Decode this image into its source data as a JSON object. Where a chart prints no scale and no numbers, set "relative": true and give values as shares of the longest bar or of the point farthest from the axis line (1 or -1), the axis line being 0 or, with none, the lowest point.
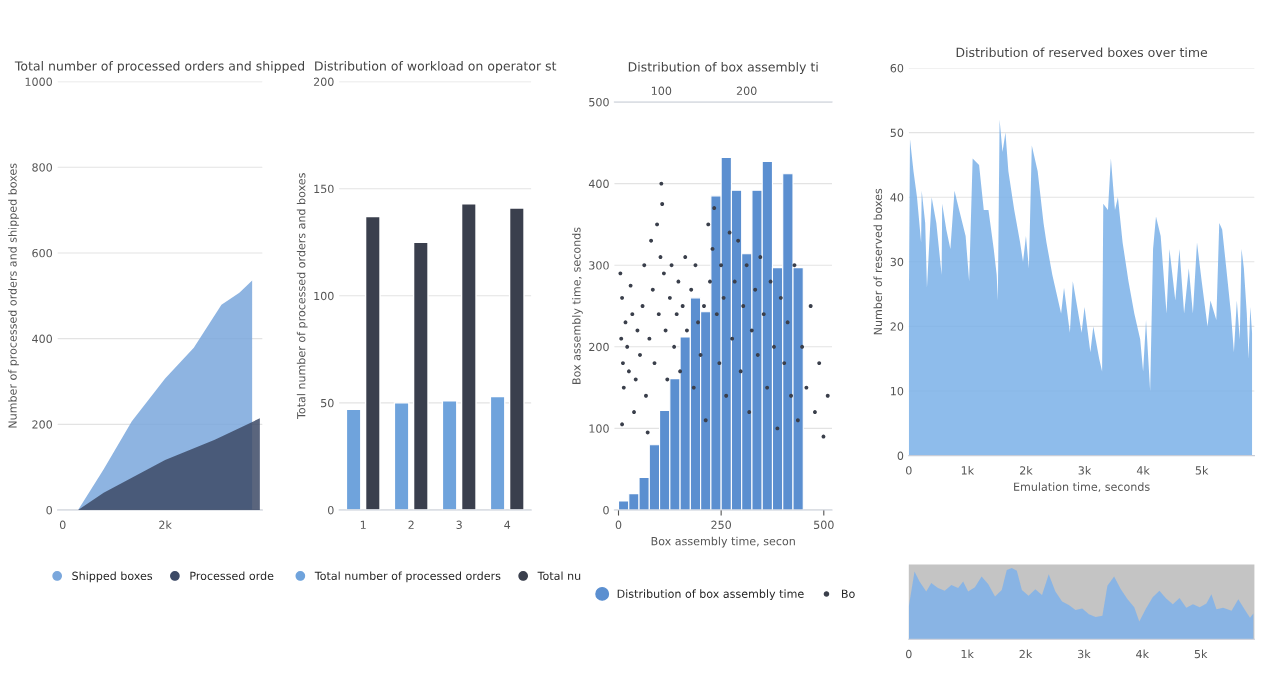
{
  "chart_data": [
    {
      "type": "area",
      "title": "Total number of processed orders and shipped",
      "ylabel": "Number of processed orders and shipped boxes",
      "series": [
        {
          "name": "Shipped boxes",
          "color": "#7aa7dc",
          "x": [
            0,
            300,
            800,
            1350,
            2000,
            2560,
            3100,
            3450,
            3700
          ],
          "values": [
            0,
            0,
            95,
            207,
            307,
            379,
            479,
            507,
            536
          ]
        },
        {
          "name": "Processed orde",
          "color": "#3d4a66",
          "x": [
            0,
            300,
            800,
            2000,
            2970,
            3850
          ],
          "values": [
            0,
            0,
            40,
            117,
            164,
            214
          ]
        }
      ],
      "xlim": [
        -100,
        3900
      ],
      "xticks": [
        {
          "value": 0,
          "label": "0"
        },
        {
          "value": 2000,
          "label": "2k"
        }
      ],
      "ylim": [
        0,
        1000
      ],
      "yticks": [
        0,
        200,
        400,
        600,
        800,
        1000
      ],
      "grid": "y",
      "legend": "bottom"
    },
    {
      "type": "bar",
      "title": "Distribution of workload on operator st",
      "ylabel": "Total number of processed orders and boxes",
      "categories": [
        "1",
        "2",
        "3",
        "4"
      ],
      "series": [
        {
          "name": "Total number of processed orders",
          "color": "#6fa3dc",
          "values": [
            47,
            50,
            51,
            53
          ]
        },
        {
          "name": "Total nu",
          "color": "#3a3f4d",
          "values": [
            137,
            125,
            143,
            141
          ]
        }
      ],
      "ylim": [
        0,
        200
      ],
      "yticks": [
        0,
        50,
        100,
        150,
        200
      ],
      "grid": "y",
      "legend": "bottom"
    },
    {
      "type": "histogram",
      "title": "Distribution of box assembly ti",
      "xlabel": "Box assembly time, secon",
      "ylabel": "Box assembly time, seconds",
      "series": [
        {
          "type": "histogram",
          "name": "Distribution of box assembly time",
          "color": "#5b8fd0",
          "bins": [
            0,
            25,
            50,
            75,
            100,
            125,
            150,
            175,
            200,
            225,
            250,
            275,
            300,
            325,
            350,
            375,
            400,
            425,
            450
          ],
          "values": [
            11,
            20,
            40,
            80,
            122,
            161,
            212,
            260,
            243,
            385,
            432,
            392,
            314,
            392,
            427,
            297,
            412,
            297
          ]
        },
        {
          "type": "scatter",
          "name": "Bo",
          "color": "#3a3f4b",
          "axis": "x2",
          "x": [
            52,
            54,
            53,
            55,
            56,
            54,
            58,
            60,
            62,
            64,
            66,
            68,
            70,
            72,
            75,
            78,
            80,
            82,
            84,
            86,
            88,
            90,
            92,
            95,
            97,
            99,
            100,
            101,
            103,
            105,
            107,
            110,
            112,
            115,
            118,
            120,
            122,
            125,
            128,
            130,
            135,
            138,
            140,
            143,
            146,
            150,
            152,
            155,
            157,
            160,
            162,
            165,
            168,
            170,
            173,
            176,
            180,
            183,
            186,
            190,
            193,
            196,
            200,
            203,
            206,
            210,
            213,
            216,
            220,
            224,
            228,
            232,
            236,
            240,
            244,
            248,
            252,
            256,
            260,
            265,
            270,
            275,
            280,
            285,
            290,
            295
          ],
          "values": [
            290,
            260,
            210,
            180,
            150,
            105,
            230,
            200,
            170,
            275,
            240,
            120,
            160,
            220,
            190,
            250,
            300,
            140,
            95,
            210,
            330,
            270,
            180,
            350,
            240,
            310,
            400,
            375,
            290,
            220,
            160,
            260,
            300,
            200,
            240,
            280,
            170,
            250,
            310,
            220,
            270,
            150,
            300,
            230,
            190,
            250,
            110,
            350,
            280,
            320,
            370,
            240,
            180,
            300,
            260,
            140,
            340,
            210,
            280,
            330,
            170,
            250,
            300,
            120,
            220,
            270,
            190,
            310,
            240,
            150,
            280,
            200,
            100,
            260,
            180,
            230,
            140,
            300,
            110,
            200,
            150,
            250,
            120,
            180,
            90,
            140
          ]
        }
      ],
      "xlim": [
        -10,
        520
      ],
      "xticks": [
        0,
        250,
        500
      ],
      "x2lim": [
        45,
        300
      ],
      "x2ticks": [
        100,
        200
      ],
      "ylim": [
        0,
        500
      ],
      "yticks": [
        0,
        100,
        200,
        300,
        400,
        500
      ],
      "grid": "y",
      "legend": "bottom"
    },
    {
      "type": "area",
      "title": "Distribution of reserved boxes over time",
      "xlabel": "Emulation time, seconds",
      "ylabel": "Number of reserved boxes",
      "series": [
        {
          "color": "#7ab0e8",
          "x": [
            0,
            20,
            80,
            140,
            210,
            220,
            280,
            310,
            390,
            470,
            560,
            570,
            640,
            710,
            780,
            860,
            970,
            1030,
            1090,
            1200,
            1280,
            1360,
            1450,
            1500,
            1520,
            1550,
            1600,
            1650,
            1700,
            1800,
            1900,
            1950,
            2000,
            2050,
            2100,
            2200,
            2300,
            2350,
            2450,
            2600,
            2650,
            2750,
            2800,
            2950,
            3000,
            3100,
            3150,
            3250,
            3300,
            3320,
            3400,
            3450,
            3520,
            3570,
            3650,
            3750,
            3850,
            3950,
            4000,
            4050,
            4120,
            4170,
            4220,
            4300,
            4400,
            4450,
            4550,
            4620,
            4700,
            4780,
            4850,
            4920,
            5000,
            5100,
            5150,
            5250,
            5300,
            5350,
            5420,
            5500,
            5550,
            5600,
            5650,
            5680,
            5720,
            5770,
            5800,
            5830,
            5860
          ],
          "values": [
            22,
            49,
            44,
            40,
            33,
            41,
            36,
            26,
            40,
            36,
            28,
            39,
            35,
            32,
            41,
            38,
            34,
            27,
            46,
            45,
            38,
            38,
            32,
            28,
            24,
            52,
            47,
            50,
            44,
            38,
            33,
            30,
            34,
            29,
            48,
            44,
            36,
            33,
            28,
            22,
            26,
            19,
            27,
            19,
            23,
            16,
            20,
            15,
            13,
            39,
            38,
            46,
            38,
            40,
            33,
            27,
            22,
            18,
            13,
            21,
            10,
            32,
            37,
            34,
            22,
            32,
            24,
            32,
            22,
            29,
            22,
            33,
            27,
            20,
            24,
            21,
            36,
            35,
            29,
            22,
            16,
            24,
            18,
            32,
            29,
            22,
            15,
            23,
            19
          ]
        }
      ],
      "xlim": [
        0,
        5900
      ],
      "xticks": [
        {
          "value": 0,
          "label": "0"
        },
        {
          "value": 1000,
          "label": "1k"
        },
        {
          "value": 2000,
          "label": "2k"
        },
        {
          "value": 3000,
          "label": "3k"
        },
        {
          "value": 4000,
          "label": "4k"
        },
        {
          "value": 5000,
          "label": "5k"
        }
      ],
      "ylim": [
        0,
        60
      ],
      "yticks": [
        0,
        10,
        20,
        30,
        40,
        50,
        60
      ],
      "grid": "y"
    },
    {
      "type": "area",
      "relative": true,
      "series": [
        {
          "color": "#7fb2ea",
          "x": [
            0,
            98,
            184,
            299,
            385,
            500,
            615,
            730,
            845,
            931,
            1017,
            1132,
            1247,
            1362,
            1477,
            1592,
            1678,
            1764,
            1851,
            1937,
            2052,
            2167,
            2282,
            2397,
            2511,
            2626,
            2741,
            2856,
            2971,
            3086,
            3201,
            3316,
            3402,
            3517,
            3632,
            3747,
            3862,
            3948,
            4063,
            4178,
            4293,
            4408,
            4523,
            4638,
            4753,
            4868,
            4983,
            5098,
            5184,
            5270,
            5385,
            5529,
            5644,
            5759,
            5845,
            5902
          ],
          "values": [
            0.46,
            0.95,
            0.81,
            0.67,
            0.79,
            0.72,
            0.68,
            0.76,
            0.72,
            0.81,
            0.67,
            0.73,
            0.88,
            0.77,
            0.6,
            0.69,
            0.97,
            1.0,
            0.96,
            0.69,
            0.61,
            0.7,
            0.62,
            0.91,
            0.67,
            0.53,
            0.48,
            0.41,
            0.43,
            0.35,
            0.31,
            0.33,
            0.75,
            0.88,
            0.7,
            0.56,
            0.45,
            0.25,
            0.43,
            0.59,
            0.68,
            0.57,
            0.49,
            0.58,
            0.44,
            0.49,
            0.45,
            0.5,
            0.63,
            0.42,
            0.44,
            0.4,
            0.56,
            0.41,
            0.3,
            0.36
          ]
        }
      ],
      "xlim": [
        0,
        5920
      ],
      "xticks": [
        {
          "value": 0,
          "label": "0"
        },
        {
          "value": 1000,
          "label": "1k"
        },
        {
          "value": 2000,
          "label": "2k"
        },
        {
          "value": 3000,
          "label": "3k"
        },
        {
          "value": 4000,
          "label": "4k"
        },
        {
          "value": 5000,
          "label": "5k"
        }
      ]
    }
  ]
}
